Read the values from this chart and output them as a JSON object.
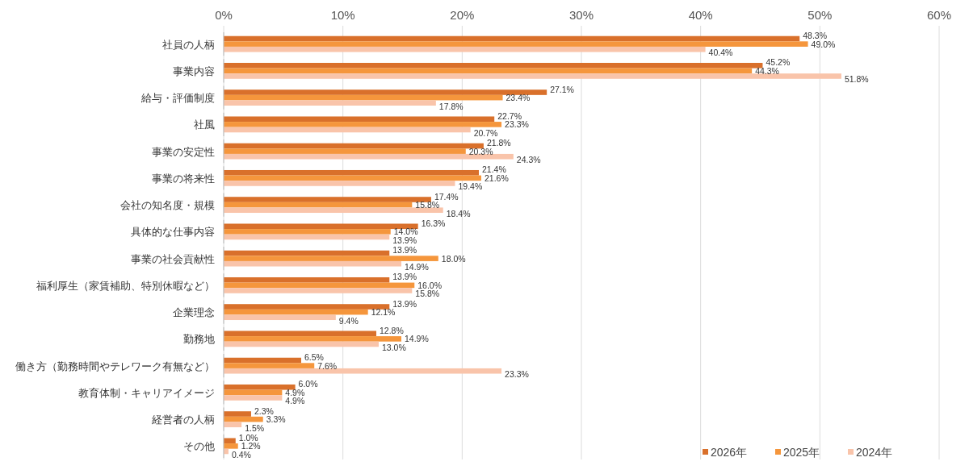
{
  "chart_data": {
    "type": "bar",
    "orientation": "horizontal",
    "categories": [
      "社員の人柄",
      "事業内容",
      "給与・評価制度",
      "社風",
      "事業の安定性",
      "事業の将来性",
      "会社の知名度・規模",
      "具体的な仕事内容",
      "事業の社会貢献性",
      "福利厚生（家賃補助、特別休暇など）",
      "企業理念",
      "勤務地",
      "働き方（勤務時間やテレワーク有無など）",
      "教育体制・キャリアイメージ",
      "経営者の人柄",
      "その他"
    ],
    "series": [
      {
        "name": "2026年",
        "color": "#d9702b",
        "values": [
          48.3,
          45.2,
          27.1,
          22.7,
          21.8,
          21.4,
          17.4,
          16.3,
          13.9,
          13.9,
          13.9,
          12.8,
          6.5,
          6.0,
          2.3,
          1.0
        ],
        "value_labels": [
          "48.3%",
          "45.2%",
          "27.1%",
          "22.7%",
          "21.8%",
          "21.4%",
          "17.4%",
          "16.3%",
          "13.9%",
          "13.9%",
          "13.9%",
          "12.8%",
          "6.5%",
          "6.0%",
          "2.3%",
          "1.0%"
        ]
      },
      {
        "name": "2025年",
        "color": "#f5963c",
        "values": [
          49.0,
          44.3,
          23.4,
          23.3,
          20.3,
          21.6,
          15.8,
          14.0,
          18.0,
          16.0,
          12.1,
          14.9,
          7.6,
          4.9,
          3.3,
          1.2
        ],
        "value_labels": [
          "49.0%",
          "44.3%",
          "23.4%",
          "23.3%",
          "20.3%",
          "21.6%",
          "15.8%",
          "14.0%",
          "18.0%",
          "16.0%",
          "12.1%",
          "14.9%",
          "7.6%",
          "4.9%",
          "3.3%",
          "1.2%"
        ]
      },
      {
        "name": "2024年",
        "color": "#f9c4aa",
        "values": [
          40.4,
          51.8,
          17.8,
          20.7,
          24.3,
          19.4,
          18.4,
          13.9,
          14.9,
          15.8,
          9.4,
          13.0,
          23.3,
          4.9,
          1.5,
          0.4
        ],
        "value_labels": [
          "40.4%",
          "51.8%",
          "17.8%",
          "20.7%",
          "24.3%",
          "19.4%",
          "18.4%",
          "13.9%",
          "14.9%",
          "15.8%",
          "9.4%",
          "13.0%",
          "23.3%",
          "4.9%",
          "1.5%",
          "0.4%"
        ]
      }
    ],
    "xlim": [
      0,
      60
    ],
    "xticks": [
      {
        "value": 0,
        "label": "0%"
      },
      {
        "value": 10,
        "label": "10%"
      },
      {
        "value": 20,
        "label": "20%"
      },
      {
        "value": 30,
        "label": "30%"
      },
      {
        "value": 40,
        "label": "40%"
      },
      {
        "value": 50,
        "label": "50%"
      },
      {
        "value": 60,
        "label": "60%"
      }
    ],
    "grid": "x",
    "legend": "bottom right"
  }
}
